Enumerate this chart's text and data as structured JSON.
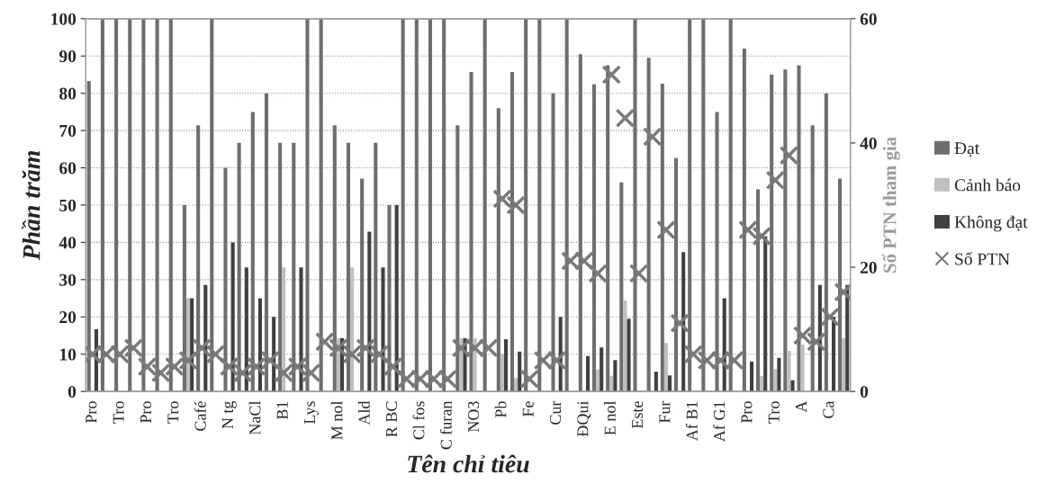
{
  "chart_data": {
    "type": "bar",
    "categories": [
      "Pro",
      null,
      "Tro",
      null,
      "Pro",
      null,
      "Tro",
      null,
      "Café",
      null,
      "N tg",
      null,
      "NaCl",
      null,
      "B1",
      null,
      "Lys",
      null,
      "M nol",
      null,
      "Ald",
      null,
      "R BC",
      null,
      "Cl fos",
      null,
      "C furan",
      null,
      "NO3",
      null,
      "Pb",
      null,
      "Fe",
      null,
      "Cur",
      null,
      "ĐQui",
      null,
      "E nol",
      null,
      "Este",
      null,
      "Fur",
      null,
      "Af B1",
      null,
      "Af G1",
      null,
      "Pro",
      null,
      "Tro",
      null,
      "A",
      null,
      "Ca",
      null
    ],
    "series": [
      {
        "name": "Đạt",
        "color": "#6e6e6e",
        "values": [
          83.3,
          100,
          100,
          100,
          100,
          100,
          100,
          50,
          71.4,
          100,
          60,
          66.7,
          75,
          80,
          66.7,
          66.7,
          100,
          100,
          71.4,
          66.7,
          57.1,
          66.7,
          50,
          100,
          100,
          100,
          100,
          71.4,
          85.7,
          100,
          76,
          85.7,
          100,
          100,
          80,
          100,
          90.5,
          82.4,
          87.5,
          56.1,
          100,
          89.5,
          82.6,
          62.6,
          100,
          100,
          75,
          100,
          92,
          54.2,
          85,
          86.4,
          87.5,
          71.4,
          80,
          57.1
        ]
      },
      {
        "name": "Cảnh báo",
        "color": "#c0c0c0",
        "values": [
          null,
          null,
          null,
          null,
          null,
          null,
          null,
          25,
          null,
          null,
          null,
          null,
          null,
          null,
          33.3,
          null,
          null,
          null,
          14.3,
          33.3,
          null,
          null,
          null,
          null,
          null,
          null,
          null,
          14.3,
          14.3,
          null,
          10,
          3.6,
          null,
          null,
          null,
          null,
          null,
          5.9,
          4.2,
          24.4,
          null,
          null,
          13,
          null,
          null,
          null,
          null,
          null,
          null,
          4.2,
          6,
          10.9,
          12.5,
          null,
          null,
          14.3
        ]
      },
      {
        "name": "Không đạt",
        "color": "#404040",
        "values": [
          16.7,
          null,
          null,
          null,
          null,
          null,
          null,
          25,
          28.6,
          null,
          40,
          33.3,
          25,
          20,
          null,
          33.3,
          null,
          null,
          14.3,
          null,
          42.9,
          33.3,
          50,
          null,
          null,
          null,
          null,
          14.3,
          null,
          null,
          14,
          10.7,
          null,
          null,
          20,
          null,
          9.5,
          11.8,
          8.4,
          19.5,
          null,
          5.3,
          4.3,
          37.4,
          null,
          null,
          25,
          null,
          8,
          41.6,
          9,
          3,
          null,
          28.6,
          20,
          28.6
        ]
      },
      {
        "name": "Số PTN",
        "type": "scatter",
        "axis": "y2",
        "color": "#7a7a7a",
        "values": [
          6,
          6,
          6,
          7,
          4,
          3,
          4,
          5,
          7,
          6,
          4,
          3,
          4,
          5,
          3,
          4,
          3,
          8,
          7,
          6,
          7,
          6,
          4,
          2,
          2,
          2,
          2,
          7,
          7,
          7,
          31,
          30,
          2,
          5,
          5,
          21,
          21,
          19,
          51,
          44,
          19,
          41,
          26,
          11,
          6,
          5,
          5,
          5,
          26,
          25,
          34,
          38,
          9,
          8,
          12,
          16
        ]
      }
    ],
    "marker": "cross",
    "xlabel": "Tên chỉ tiêu",
    "ylabel": "Phần trăm",
    "y2label": "Số PTN tham gia",
    "ylim": [
      0,
      100
    ],
    "yticks": [
      0,
      10,
      20,
      30,
      40,
      50,
      60,
      70,
      80,
      90,
      100
    ],
    "y2lim": [
      0,
      60
    ],
    "y2ticks": [
      0,
      20,
      40,
      60
    ],
    "grid": "y",
    "legend": "right"
  }
}
